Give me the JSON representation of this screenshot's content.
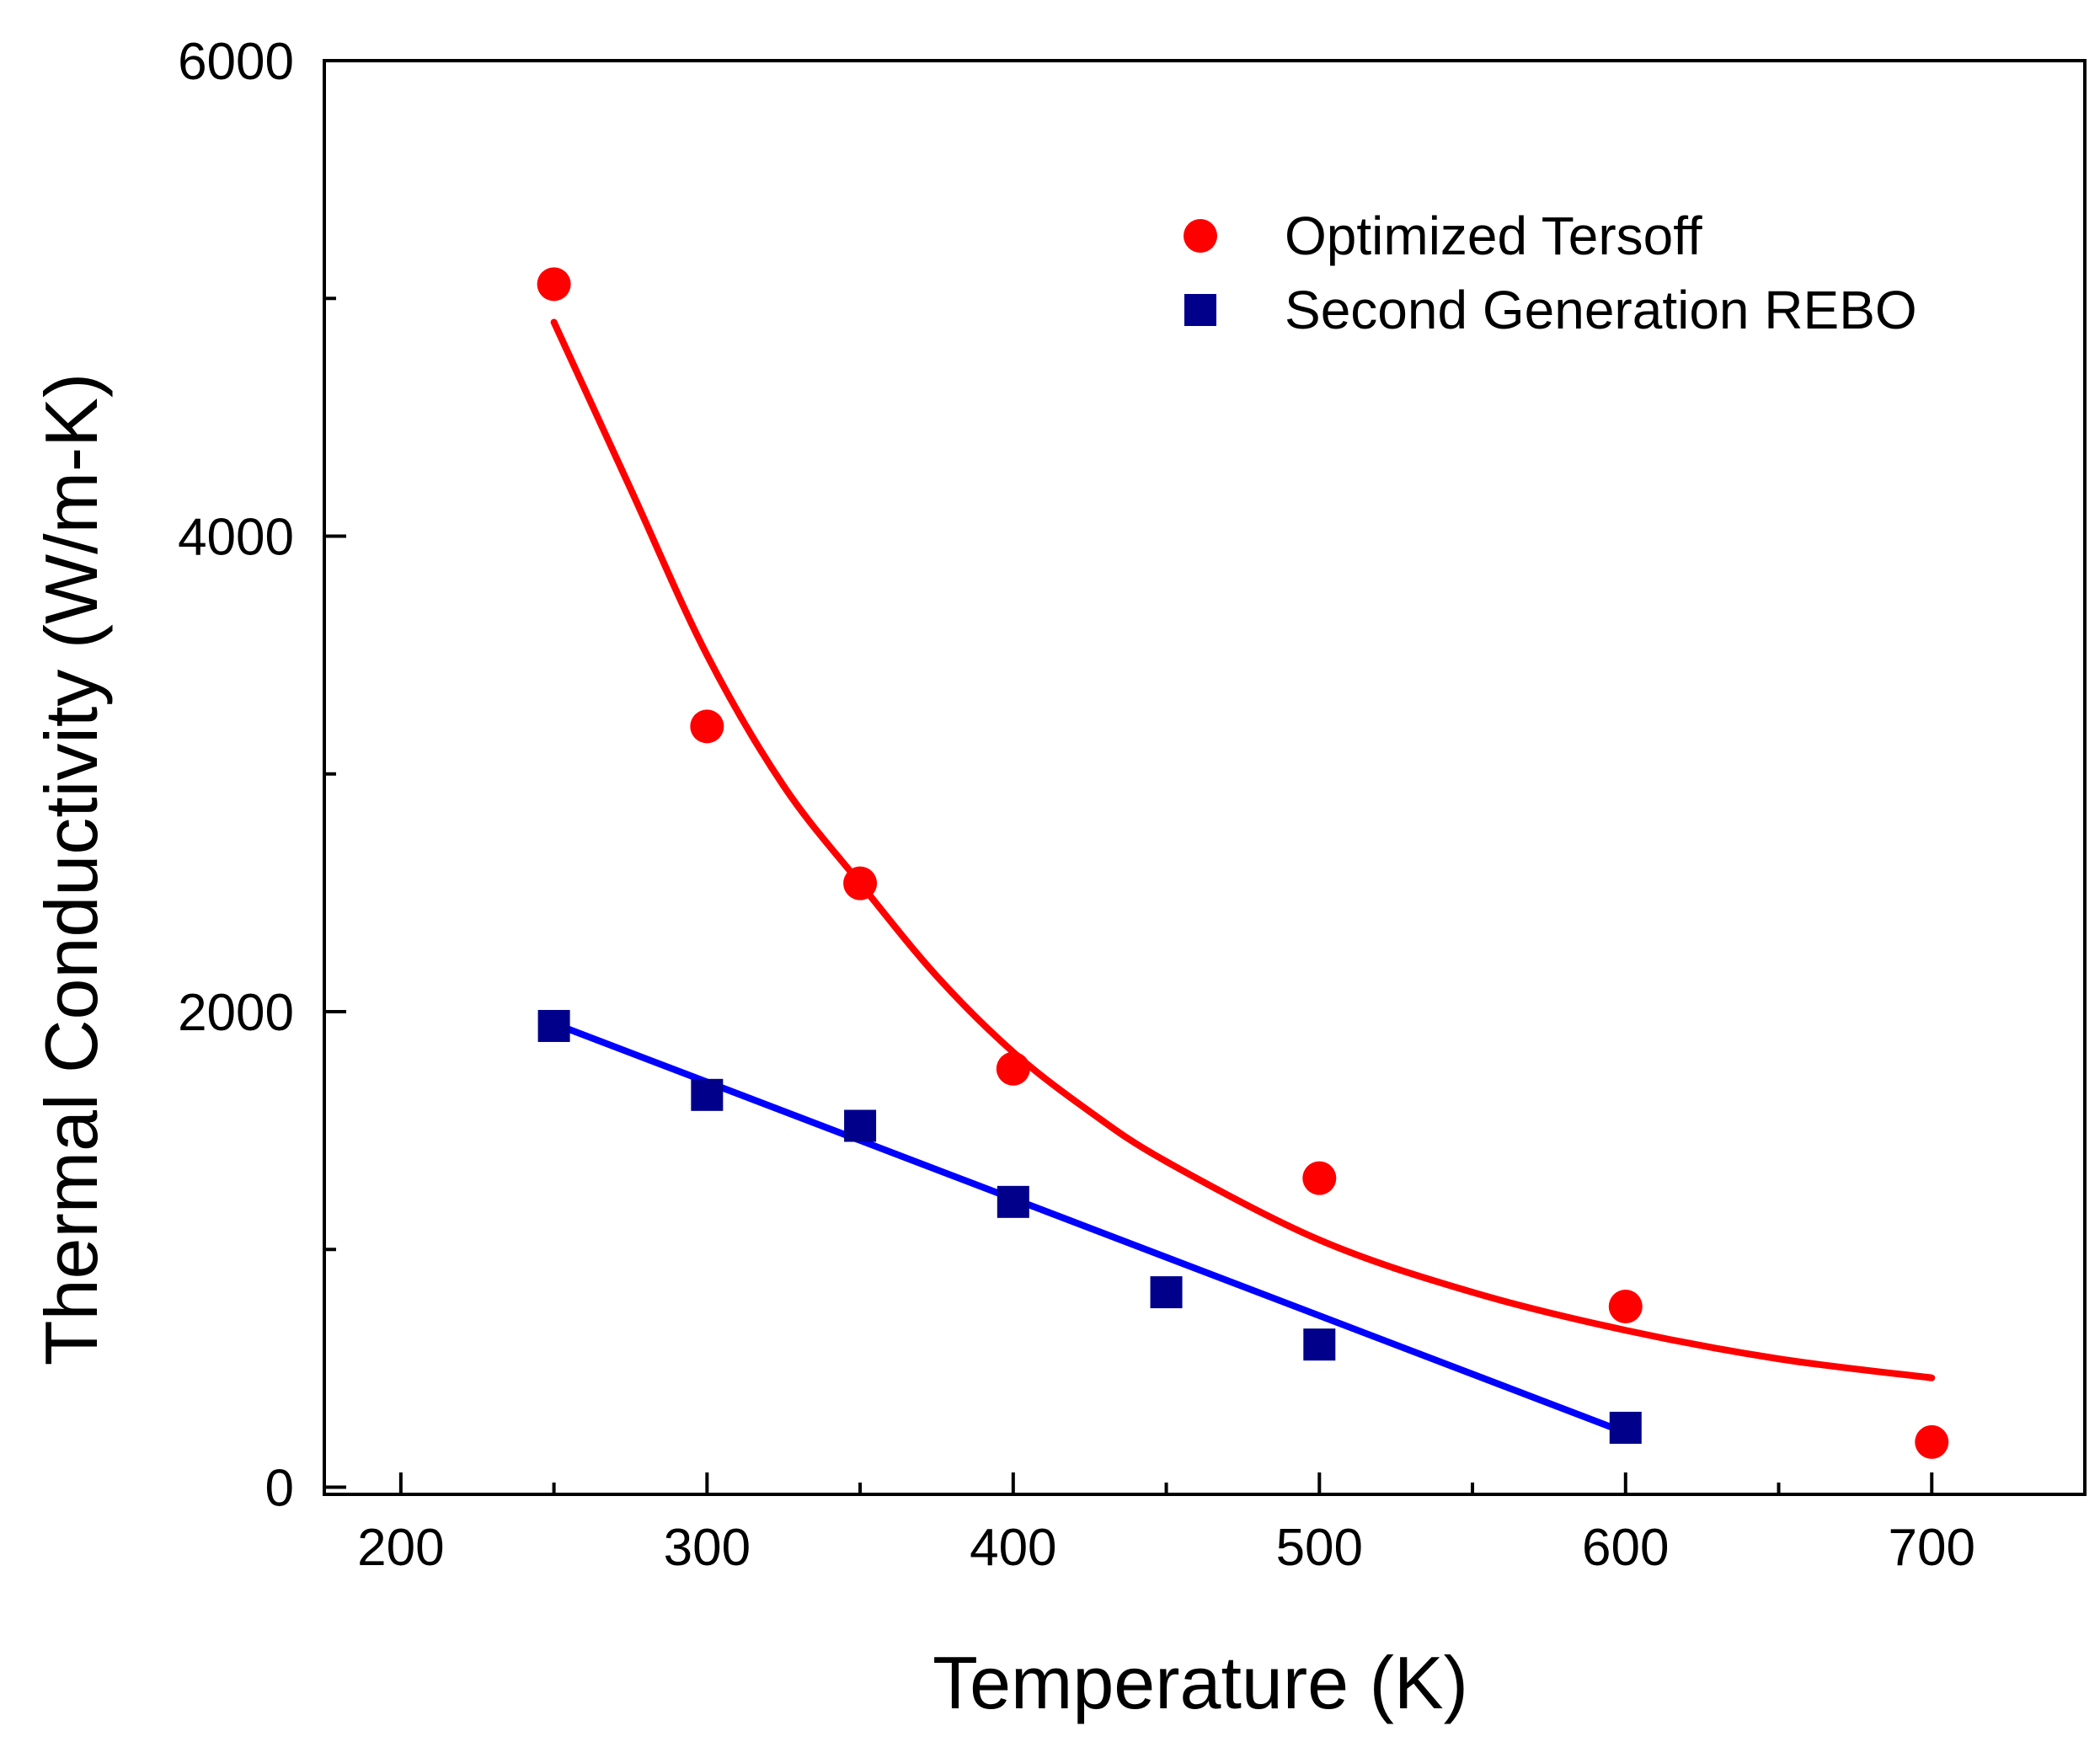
{
  "chart_data": {
    "type": "scatter",
    "title": "",
    "xlabel": "Temperature (K)",
    "ylabel": "Thermal Conductivity (W/m-K)",
    "xlim": [
      175,
      750
    ],
    "ylim": [
      -30,
      6000
    ],
    "xticks": [
      200,
      300,
      400,
      500,
      600,
      700
    ],
    "xtick_labels": [
      "200",
      "300",
      "400",
      "500",
      "600",
      "700"
    ],
    "xminor_ticks": [
      250,
      350,
      450,
      550,
      650
    ],
    "yticks": [
      0,
      2000,
      4000,
      6000
    ],
    "ytick_labels": [
      "0",
      "2000",
      "4000",
      "6000"
    ],
    "yminor_ticks": [
      1000,
      3000,
      5000
    ],
    "grid": false,
    "legend_position": "top-right",
    "series": [
      {
        "name": "Optimized Tersoff",
        "marker": "circle",
        "color": "#ff0000",
        "x": [
          250,
          300,
          350,
          400,
          500,
          600,
          700
        ],
        "y": [
          5060,
          3200,
          2540,
          1760,
          1300,
          760,
          190
        ],
        "fit": {
          "x": [
            250,
            275,
            300,
            325,
            350,
            375,
            400,
            425,
            450,
            500,
            550,
            600,
            650,
            700
          ],
          "y": [
            4900,
            4200,
            3500,
            2950,
            2540,
            2150,
            1830,
            1580,
            1370,
            1040,
            820,
            660,
            540,
            460
          ]
        }
      },
      {
        "name": "Second Generation REBO",
        "marker": "square",
        "color": "#00008b",
        "fit_color": "#0000ff",
        "x": [
          250,
          300,
          350,
          400,
          450,
          500,
          600
        ],
        "y": [
          1940,
          1650,
          1520,
          1200,
          820,
          600,
          250
        ],
        "fit": {
          "x": [
            250,
            600
          ],
          "y": [
            1950,
            230
          ]
        }
      }
    ]
  }
}
